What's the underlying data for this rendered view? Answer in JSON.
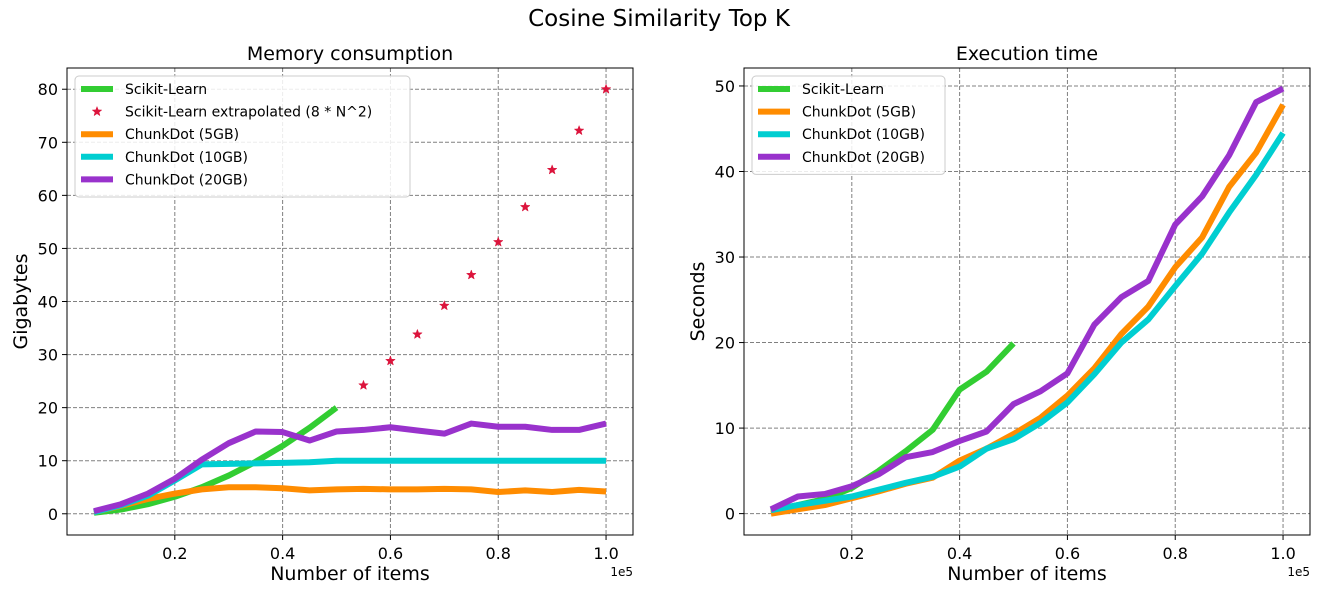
{
  "suptitle": "Cosine Similarity Top K",
  "chart_data": [
    {
      "type": "line",
      "title": "Memory consumption",
      "xlabel": "Number of items",
      "ylabel": "Gigabytes",
      "x_offset_text": "1e5",
      "xlim": [
        0.0,
        1.05
      ],
      "ylim": [
        -4,
        84
      ],
      "xticks": [
        0.2,
        0.4,
        0.6,
        0.8,
        1.0
      ],
      "xtick_labels": [
        "0.2",
        "0.4",
        "0.6",
        "0.8",
        "1.0"
      ],
      "yticks": [
        0,
        10,
        20,
        30,
        40,
        50,
        60,
        70,
        80
      ],
      "ytick_labels": [
        "0",
        "10",
        "20",
        "30",
        "40",
        "50",
        "60",
        "70",
        "80"
      ],
      "grid": true,
      "legend_position": "top-left",
      "series": [
        {
          "name": "Scikit-Learn",
          "color": "#32CD32",
          "style": "line",
          "x": [
            0.05,
            0.1,
            0.15,
            0.2,
            0.25,
            0.3,
            0.35,
            0.4,
            0.45,
            0.5
          ],
          "y": [
            0.2,
            0.8,
            1.8,
            3.2,
            5.0,
            7.2,
            9.8,
            12.8,
            16.2,
            20.0
          ]
        },
        {
          "name": "Scikit-Learn extrapolated (8 * N^2)",
          "color": "#DC143C",
          "style": "star",
          "x": [
            0.55,
            0.6,
            0.65,
            0.7,
            0.75,
            0.8,
            0.85,
            0.9,
            0.95,
            1.0
          ],
          "y": [
            24.2,
            28.8,
            33.8,
            39.2,
            45.0,
            51.2,
            57.8,
            64.8,
            72.2,
            80.0
          ]
        },
        {
          "name": "ChunkDot (5GB)",
          "color": "#FF8C00",
          "style": "line",
          "x": [
            0.05,
            0.1,
            0.15,
            0.2,
            0.25,
            0.3,
            0.35,
            0.4,
            0.45,
            0.5,
            0.55,
            0.6,
            0.65,
            0.7,
            0.75,
            0.8,
            0.85,
            0.9,
            0.95,
            1.0
          ],
          "y": [
            0.3,
            1.5,
            2.8,
            3.8,
            4.6,
            5.0,
            5.0,
            4.8,
            4.4,
            4.6,
            4.7,
            4.6,
            4.6,
            4.7,
            4.6,
            4.1,
            4.4,
            4.1,
            4.5,
            4.2
          ]
        },
        {
          "name": "ChunkDot (10GB)",
          "color": "#00CED1",
          "style": "line",
          "x": [
            0.05,
            0.1,
            0.15,
            0.2,
            0.25,
            0.3,
            0.35,
            0.4,
            0.45,
            0.5,
            0.55,
            0.6,
            0.65,
            0.7,
            0.75,
            0.8,
            0.85,
            0.9,
            0.95,
            1.0
          ],
          "y": [
            0.3,
            1.6,
            3.4,
            6.3,
            9.3,
            9.4,
            9.5,
            9.6,
            9.7,
            10.0,
            10.0,
            10.0,
            10.0,
            10.0,
            10.0,
            10.0,
            10.0,
            10.0,
            10.0,
            10.0
          ]
        },
        {
          "name": "ChunkDot (20GB)",
          "color": "#9932CC",
          "style": "line",
          "x": [
            0.05,
            0.1,
            0.15,
            0.2,
            0.25,
            0.3,
            0.35,
            0.4,
            0.45,
            0.5,
            0.55,
            0.6,
            0.65,
            0.7,
            0.75,
            0.8,
            0.85,
            0.9,
            0.95,
            1.0
          ],
          "y": [
            0.5,
            1.8,
            3.8,
            6.6,
            10.2,
            13.3,
            15.5,
            15.4,
            13.8,
            15.5,
            15.8,
            16.3,
            15.7,
            15.1,
            17.0,
            16.4,
            16.4,
            15.8,
            15.8,
            17.0
          ]
        }
      ]
    },
    {
      "type": "line",
      "title": "Execution time",
      "xlabel": "Number of items",
      "ylabel": "Seconds",
      "x_offset_text": "1e5",
      "xlim": [
        0.0,
        1.05
      ],
      "ylim": [
        -2.5,
        52.1
      ],
      "xticks": [
        0.2,
        0.4,
        0.6,
        0.8,
        1.0
      ],
      "xtick_labels": [
        "0.2",
        "0.4",
        "0.6",
        "0.8",
        "1.0"
      ],
      "yticks": [
        0,
        10,
        20,
        30,
        40,
        50
      ],
      "ytick_labels": [
        "0",
        "10",
        "20",
        "30",
        "40",
        "50"
      ],
      "grid": true,
      "legend_position": "top-left",
      "series": [
        {
          "name": "Scikit-Learn",
          "color": "#32CD32",
          "style": "line",
          "x": [
            0.05,
            0.1,
            0.15,
            0.2,
            0.25,
            0.3,
            0.35,
            0.4,
            0.45,
            0.5
          ],
          "y": [
            0.3,
            1.0,
            1.7,
            3.0,
            5.0,
            7.3,
            9.8,
            14.5,
            16.6,
            19.9
          ]
        },
        {
          "name": "ChunkDot (5GB)",
          "color": "#FF8C00",
          "style": "line",
          "x": [
            0.05,
            0.1,
            0.15,
            0.2,
            0.25,
            0.3,
            0.35,
            0.4,
            0.45,
            0.5,
            0.55,
            0.6,
            0.65,
            0.7,
            0.75,
            0.8,
            0.85,
            0.9,
            0.95,
            1.0
          ],
          "y": [
            0.0,
            0.5,
            1.0,
            1.8,
            2.6,
            3.5,
            4.2,
            6.2,
            7.6,
            9.3,
            11.2,
            13.8,
            17.0,
            21.0,
            24.2,
            28.8,
            32.3,
            38.2,
            42.2,
            47.8
          ]
        },
        {
          "name": "ChunkDot (10GB)",
          "color": "#00CED1",
          "style": "line",
          "x": [
            0.05,
            0.1,
            0.15,
            0.2,
            0.25,
            0.3,
            0.35,
            0.4,
            0.45,
            0.5,
            0.55,
            0.6,
            0.65,
            0.7,
            0.75,
            0.8,
            0.85,
            0.9,
            0.95,
            1.0
          ],
          "y": [
            0.4,
            1.0,
            1.5,
            2.0,
            2.8,
            3.6,
            4.3,
            5.5,
            7.6,
            8.7,
            10.6,
            13.0,
            16.3,
            20.0,
            22.7,
            26.6,
            30.4,
            35.2,
            39.6,
            44.5
          ]
        },
        {
          "name": "ChunkDot (20GB)",
          "color": "#9932CC",
          "style": "line",
          "x": [
            0.05,
            0.1,
            0.15,
            0.2,
            0.25,
            0.3,
            0.35,
            0.4,
            0.45,
            0.5,
            0.55,
            0.6,
            0.65,
            0.7,
            0.75,
            0.8,
            0.85,
            0.9,
            0.95,
            1.0
          ],
          "y": [
            0.5,
            2.0,
            2.3,
            3.2,
            4.6,
            6.6,
            7.2,
            8.5,
            9.6,
            12.8,
            14.3,
            16.4,
            22.1,
            25.3,
            27.2,
            33.8,
            37.1,
            41.9,
            48.1,
            49.7
          ]
        }
      ]
    }
  ]
}
